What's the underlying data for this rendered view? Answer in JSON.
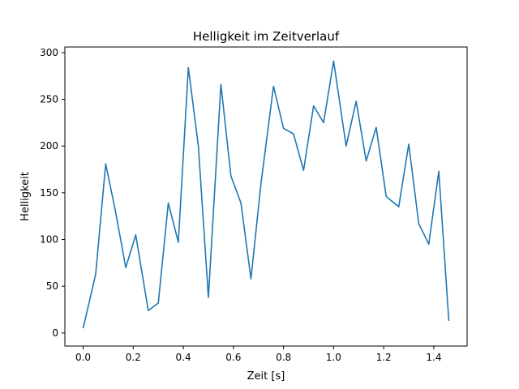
{
  "chart_data": {
    "type": "line",
    "title": "Helligkeit im Zeitverlauf",
    "xlabel": "Zeit [s]",
    "ylabel": "Helligkeit",
    "xlim": [
      -0.073,
      1.533
    ],
    "ylim": [
      -14,
      306
    ],
    "xticks": [
      0.0,
      0.2,
      0.4,
      0.6,
      0.8,
      1.0,
      1.2,
      1.4
    ],
    "xtick_labels": [
      "0.0",
      "0.2",
      "0.4",
      "0.6",
      "0.8",
      "1.0",
      "1.2",
      "1.4"
    ],
    "yticks": [
      0,
      50,
      100,
      150,
      200,
      250,
      300
    ],
    "ytick_labels": [
      "0",
      "50",
      "100",
      "150",
      "200",
      "250",
      "300"
    ],
    "grid": false,
    "series": [
      {
        "name": "Helligkeit",
        "color": "#1f77b4",
        "x": [
          0.0,
          0.05,
          0.09,
          0.13,
          0.17,
          0.21,
          0.26,
          0.3,
          0.34,
          0.38,
          0.42,
          0.46,
          0.5,
          0.55,
          0.59,
          0.63,
          0.67,
          0.71,
          0.76,
          0.8,
          0.84,
          0.88,
          0.92,
          0.96,
          1.0,
          1.05,
          1.09,
          1.13,
          1.17,
          1.21,
          1.26,
          1.3,
          1.34,
          1.38,
          1.42,
          1.46
        ],
        "y": [
          5,
          63,
          181,
          129,
          70,
          105,
          24,
          32,
          139,
          97,
          284,
          200,
          38,
          266,
          168,
          139,
          58,
          160,
          264,
          219,
          213,
          174,
          243,
          225,
          291,
          200,
          248,
          184,
          220,
          146,
          135,
          202,
          117,
          95,
          173,
          13
        ]
      }
    ]
  }
}
